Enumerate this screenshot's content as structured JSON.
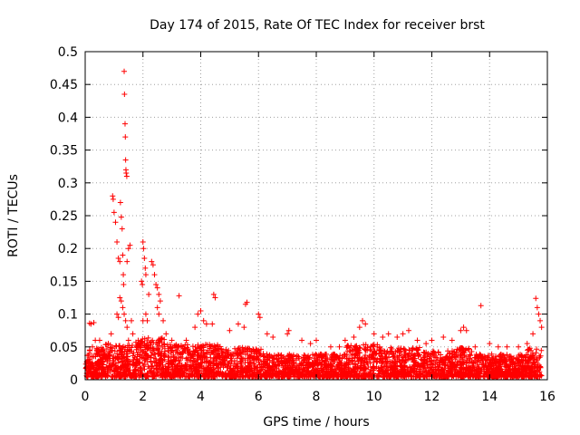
{
  "chart_data": {
    "type": "scatter",
    "title": "Day 174 of 2015, Rate Of TEC Index for receiver brst",
    "xlabel": "GPS time / hours",
    "ylabel": "ROTI / TECUs",
    "xlim": [
      0,
      16
    ],
    "ylim": [
      0,
      0.5
    ],
    "xticks": [
      "0",
      "2",
      "4",
      "6",
      "8",
      "10",
      "12",
      "14",
      "16"
    ],
    "yticks": [
      "0",
      "0.05",
      "0.1",
      "0.15",
      "0.2",
      "0.25",
      "0.3",
      "0.35",
      "0.4",
      "0.45",
      "0.5"
    ],
    "grid": true,
    "marker": "plus",
    "color": "#ff0000",
    "series": [
      {
        "points": [
          [
            0.1,
            0.03
          ],
          [
            0.15,
            0.086
          ],
          [
            0.2,
            0.085
          ],
          [
            0.25,
            0.05
          ],
          [
            0.3,
            0.087
          ],
          [
            0.35,
            0.06
          ],
          [
            0.4,
            0.045
          ],
          [
            0.5,
            0.06
          ],
          [
            0.6,
            0.045
          ],
          [
            0.8,
            0.055
          ],
          [
            0.9,
            0.07
          ],
          [
            0.95,
            0.28
          ],
          [
            0.97,
            0.275
          ],
          [
            1.0,
            0.255
          ],
          [
            1.05,
            0.24
          ],
          [
            1.1,
            0.21
          ],
          [
            1.15,
            0.185
          ],
          [
            1.2,
            0.18
          ],
          [
            1.22,
            0.27
          ],
          [
            1.25,
            0.248
          ],
          [
            1.28,
            0.23
          ],
          [
            1.3,
            0.19
          ],
          [
            1.32,
            0.16
          ],
          [
            1.33,
            0.145
          ],
          [
            1.35,
            0.47
          ],
          [
            1.36,
            0.435
          ],
          [
            1.38,
            0.39
          ],
          [
            1.39,
            0.37
          ],
          [
            1.4,
            0.335
          ],
          [
            1.41,
            0.32
          ],
          [
            1.42,
            0.315
          ],
          [
            1.44,
            0.31
          ],
          [
            1.45,
            0.18
          ],
          [
            1.5,
            0.2
          ],
          [
            1.55,
            0.205
          ],
          [
            1.6,
            0.09
          ],
          [
            1.65,
            0.07
          ],
          [
            1.2,
            0.125
          ],
          [
            1.25,
            0.12
          ],
          [
            1.1,
            0.1
          ],
          [
            1.15,
            0.095
          ],
          [
            1.3,
            0.11
          ],
          [
            1.35,
            0.1
          ],
          [
            1.4,
            0.09
          ],
          [
            1.45,
            0.08
          ],
          [
            1.5,
            0.06
          ],
          [
            2.0,
            0.21
          ],
          [
            2.02,
            0.2
          ],
          [
            2.05,
            0.185
          ],
          [
            2.08,
            0.17
          ],
          [
            2.1,
            0.16
          ],
          [
            1.95,
            0.15
          ],
          [
            1.98,
            0.145
          ],
          [
            2.0,
            0.09
          ],
          [
            2.1,
            0.1
          ],
          [
            2.15,
            0.09
          ],
          [
            2.2,
            0.13
          ],
          [
            2.3,
            0.18
          ],
          [
            2.35,
            0.175
          ],
          [
            2.4,
            0.16
          ],
          [
            2.45,
            0.145
          ],
          [
            2.5,
            0.14
          ],
          [
            2.55,
            0.13
          ],
          [
            2.6,
            0.12
          ],
          [
            2.5,
            0.11
          ],
          [
            2.55,
            0.1
          ],
          [
            2.7,
            0.09
          ],
          [
            2.8,
            0.07
          ],
          [
            3.0,
            0.06
          ],
          [
            3.25,
            0.128
          ],
          [
            3.5,
            0.06
          ],
          [
            3.8,
            0.08
          ],
          [
            3.9,
            0.1
          ],
          [
            4.0,
            0.105
          ],
          [
            4.1,
            0.09
          ],
          [
            4.2,
            0.085
          ],
          [
            4.4,
            0.085
          ],
          [
            4.45,
            0.13
          ],
          [
            4.5,
            0.125
          ],
          [
            5.0,
            0.075
          ],
          [
            5.3,
            0.085
          ],
          [
            5.5,
            0.08
          ],
          [
            5.55,
            0.115
          ],
          [
            5.6,
            0.118
          ],
          [
            6.0,
            0.1
          ],
          [
            6.05,
            0.095
          ],
          [
            6.3,
            0.07
          ],
          [
            6.5,
            0.065
          ],
          [
            7.0,
            0.07
          ],
          [
            7.05,
            0.075
          ],
          [
            7.5,
            0.06
          ],
          [
            7.8,
            0.055
          ],
          [
            8.0,
            0.06
          ],
          [
            8.5,
            0.05
          ],
          [
            8.8,
            0.05
          ],
          [
            9.0,
            0.06
          ],
          [
            9.3,
            0.065
          ],
          [
            9.5,
            0.08
          ],
          [
            9.6,
            0.09
          ],
          [
            9.7,
            0.085
          ],
          [
            10.0,
            0.07
          ],
          [
            10.3,
            0.065
          ],
          [
            10.5,
            0.07
          ],
          [
            10.8,
            0.065
          ],
          [
            11.0,
            0.07
          ],
          [
            11.2,
            0.075
          ],
          [
            11.5,
            0.06
          ],
          [
            11.8,
            0.055
          ],
          [
            12.0,
            0.06
          ],
          [
            12.4,
            0.065
          ],
          [
            12.7,
            0.06
          ],
          [
            13.0,
            0.075
          ],
          [
            13.1,
            0.08
          ],
          [
            13.2,
            0.075
          ],
          [
            13.5,
            0.05
          ],
          [
            13.7,
            0.113
          ],
          [
            14.0,
            0.055
          ],
          [
            14.3,
            0.05
          ],
          [
            14.6,
            0.05
          ],
          [
            15.0,
            0.05
          ],
          [
            15.3,
            0.055
          ],
          [
            15.5,
            0.07
          ],
          [
            15.6,
            0.124
          ],
          [
            15.65,
            0.11
          ],
          [
            15.7,
            0.1
          ],
          [
            15.75,
            0.09
          ],
          [
            15.8,
            0.08
          ]
        ]
      }
    ]
  }
}
